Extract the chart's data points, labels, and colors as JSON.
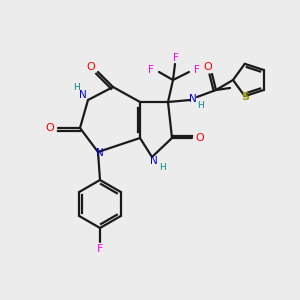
{
  "bg_color": "#ececec",
  "bond_color": "#1a1a1a",
  "colors": {
    "N": "#0000dd",
    "O": "#ff0000",
    "F": "#ff00ff",
    "S": "#999900",
    "H": "#008888",
    "C": "#1a1a1a"
  },
  "lw": 1.6
}
